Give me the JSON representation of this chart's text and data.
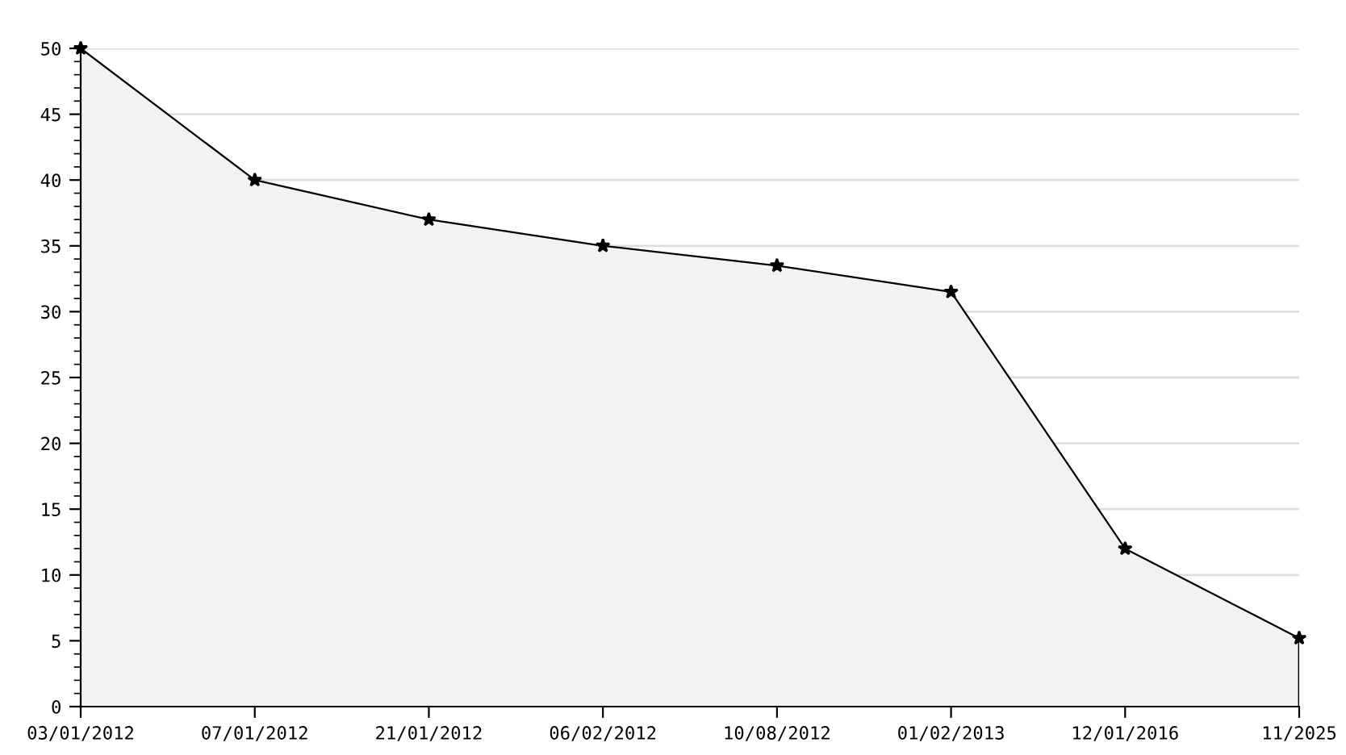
{
  "chart_data": {
    "type": "area",
    "categories": [
      "03/01/2012",
      "07/01/2012",
      "21/01/2012",
      "06/02/2012",
      "10/08/2012",
      "01/02/2013",
      "12/01/2016",
      "11/2025"
    ],
    "series": [
      {
        "color": "#000000",
        "values": [
          50,
          40,
          37,
          35,
          33.5,
          31.5,
          12,
          5.2
        ]
      }
    ],
    "ylim": [
      0,
      50
    ],
    "yticks": [
      0,
      5,
      10,
      15,
      20,
      25,
      30,
      35,
      40,
      45,
      50
    ],
    "grid": "y",
    "marker": "star",
    "line_style": "solid",
    "legend": false
  }
}
